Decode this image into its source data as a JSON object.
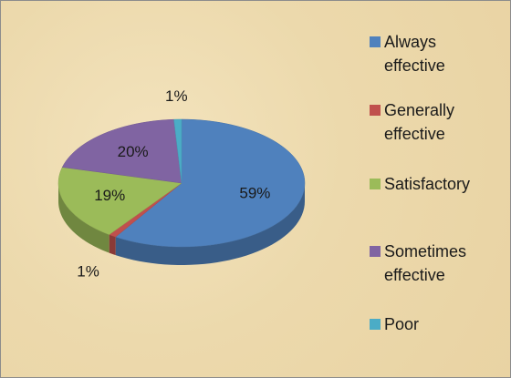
{
  "chart_data": {
    "type": "pie3d",
    "categories": [
      "Always effective",
      "Generally effective",
      "Satisfactory",
      "Sometimes effective",
      "Poor"
    ],
    "values": [
      59,
      1,
      19,
      20,
      1
    ],
    "value_labels": [
      "59%",
      "1%",
      "19%",
      "20%",
      "1%"
    ],
    "colors": [
      "#4f81bd",
      "#c0504d",
      "#9bbb59",
      "#8064a2",
      "#4bacc6"
    ],
    "legend": "right"
  }
}
